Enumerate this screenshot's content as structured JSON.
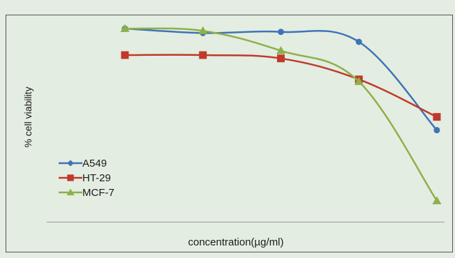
{
  "chart_data": {
    "type": "line",
    "title": "",
    "xlabel": "concentration(µg/ml)",
    "ylabel": "% cell viability",
    "x": [
      1,
      2,
      3,
      4,
      5
    ],
    "ylim": [
      0,
      100
    ],
    "grid": false,
    "legend": "left",
    "smooth": true,
    "series": [
      {
        "name": "A549",
        "color": "#3f73b8",
        "marker": "circle",
        "values": [
          95,
          93,
          93.5,
          89,
          49
        ]
      },
      {
        "name": "HT-29",
        "color": "#c0392b",
        "marker": "square",
        "values": [
          83,
          83,
          81.5,
          72,
          55
        ]
      },
      {
        "name": "MCF-7",
        "color": "#8db04a",
        "marker": "triangle",
        "values": [
          95,
          94,
          85,
          71,
          17
        ]
      }
    ]
  }
}
